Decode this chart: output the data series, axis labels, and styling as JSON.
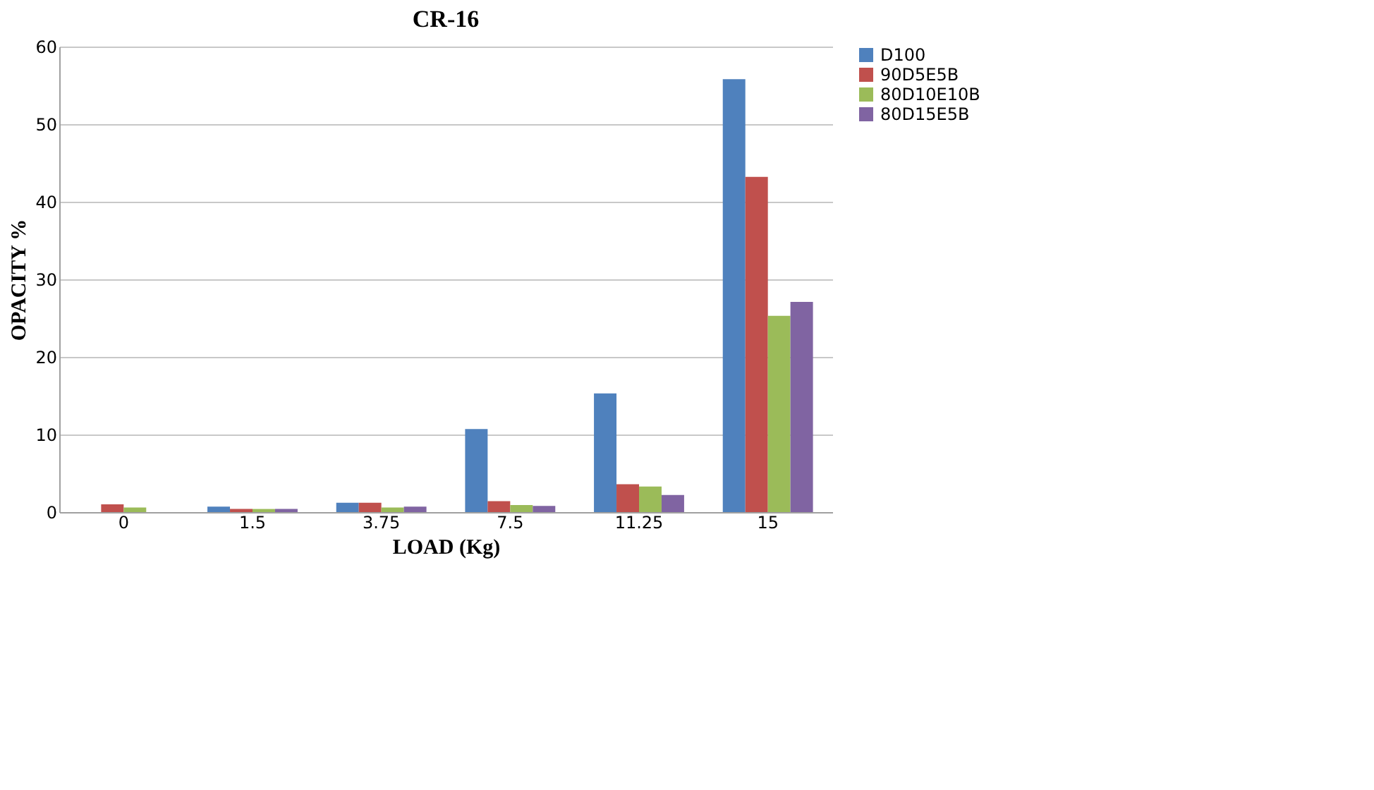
{
  "chart_data": {
    "type": "bar",
    "title": "CR-16",
    "xlabel": "LOAD (Kg)",
    "ylabel": "OPACITY %",
    "categories": [
      "0",
      "1.5",
      "3.75",
      "7.5",
      "11.25",
      "15"
    ],
    "series": [
      {
        "name": "D100",
        "color": "#4f81bd",
        "values": [
          0,
          0.7,
          1.2,
          10.7,
          15.3,
          55.8
        ]
      },
      {
        "name": "90D5E5B",
        "color": "#c0504d",
        "values": [
          1.0,
          0.4,
          1.2,
          1.4,
          3.6,
          43.2
        ]
      },
      {
        "name": "80D10E10B",
        "color": "#9bbb59",
        "values": [
          0.6,
          0.4,
          0.6,
          0.9,
          3.3,
          25.3
        ]
      },
      {
        "name": "80D15E5B",
        "color": "#8064a2",
        "values": [
          0,
          0.4,
          0.7,
          0.8,
          2.2,
          27.1
        ]
      }
    ],
    "ylim": [
      0,
      60
    ],
    "yticks": [
      0,
      10,
      20,
      30,
      40,
      50,
      60
    ],
    "grid": "y",
    "legend": "right"
  }
}
